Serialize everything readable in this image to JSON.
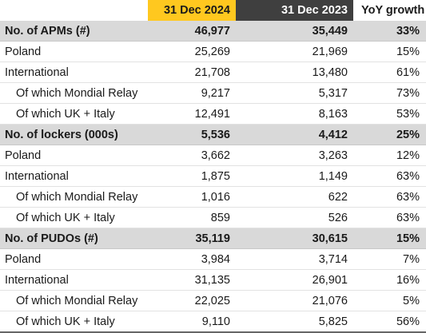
{
  "header": {
    "col_2024": "31 Dec 2024",
    "col_2023": "31 Dec 2023",
    "col_yoy": "YoY growth"
  },
  "rows": [
    {
      "label": "No. of APMs (#)",
      "v2024": "46,977",
      "v2023": "35,449",
      "yoy": "33%",
      "type": "section"
    },
    {
      "label": "Poland",
      "v2024": "25,269",
      "v2023": "21,969",
      "yoy": "15%",
      "type": "main"
    },
    {
      "label": "International",
      "v2024": "21,708",
      "v2023": "13,480",
      "yoy": "61%",
      "type": "main"
    },
    {
      "label": "Of which Mondial Relay",
      "v2024": "9,217",
      "v2023": "5,317",
      "yoy": "73%",
      "type": "sub"
    },
    {
      "label": "Of which UK + Italy",
      "v2024": "12,491",
      "v2023": "8,163",
      "yoy": "53%",
      "type": "sub"
    },
    {
      "label": "No. of lockers (000s)",
      "v2024": "5,536",
      "v2023": "4,412",
      "yoy": "25%",
      "type": "section"
    },
    {
      "label": "Poland",
      "v2024": "3,662",
      "v2023": "3,263",
      "yoy": "12%",
      "type": "main"
    },
    {
      "label": "International",
      "v2024": "1,875",
      "v2023": "1,149",
      "yoy": "63%",
      "type": "main"
    },
    {
      "label": "Of which Mondial Relay",
      "v2024": "1,016",
      "v2023": "622",
      "yoy": "63%",
      "type": "sub"
    },
    {
      "label": "Of which UK + Italy",
      "v2024": "859",
      "v2023": "526",
      "yoy": "63%",
      "type": "sub"
    },
    {
      "label": "No. of PUDOs (#)",
      "v2024": "35,119",
      "v2023": "30,615",
      "yoy": "15%",
      "type": "section"
    },
    {
      "label": "Poland",
      "v2024": "3,984",
      "v2023": "3,714",
      "yoy": "7%",
      "type": "main"
    },
    {
      "label": "International",
      "v2024": "31,135",
      "v2023": "26,901",
      "yoy": "16%",
      "type": "main"
    },
    {
      "label": "Of which Mondial Relay",
      "v2024": "22,025",
      "v2023": "21,076",
      "yoy": "5%",
      "type": "sub"
    },
    {
      "label": "Of which UK + Italy",
      "v2024": "9,110",
      "v2023": "5,825",
      "yoy": "56%",
      "type": "sub"
    }
  ],
  "colors": {
    "header_2024_bg": "#ffc81f",
    "header_2023_bg": "#3f3f3f",
    "section_bg": "#d9d9d9"
  }
}
